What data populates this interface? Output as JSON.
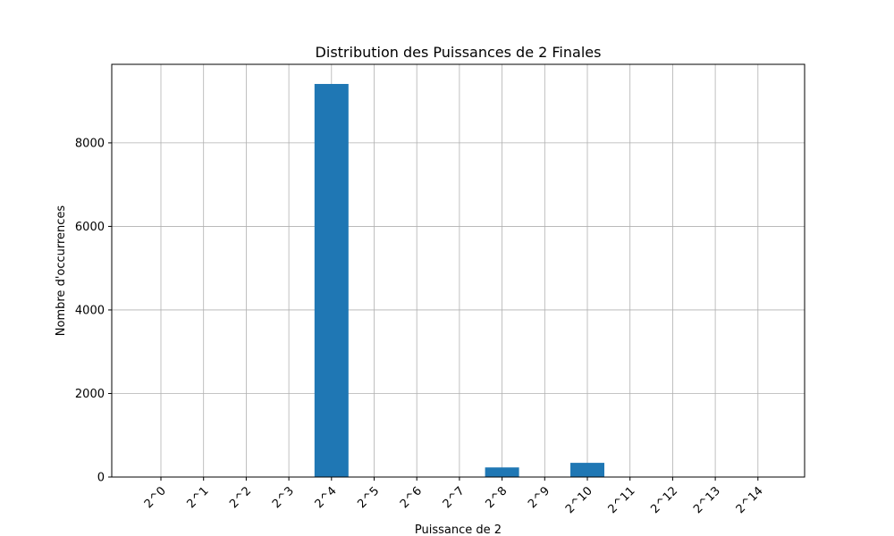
{
  "chart_data": {
    "type": "bar",
    "title": "Distribution des Puissances de 2 Finales",
    "xlabel": "Puissance de 2",
    "ylabel": "Nombre d'occurrences",
    "categories": [
      "2^0",
      "2^1",
      "2^2",
      "2^3",
      "2^4",
      "2^5",
      "2^6",
      "2^7",
      "2^8",
      "2^9",
      "2^10",
      "2^11",
      "2^12",
      "2^13",
      "2^14"
    ],
    "values": [
      0,
      0,
      0,
      0,
      9410,
      0,
      0,
      0,
      230,
      0,
      340,
      0,
      0,
      0,
      0
    ],
    "ylim": [
      0,
      9880
    ],
    "yticks": [
      0,
      2000,
      4000,
      6000,
      8000
    ],
    "ytick_labels": [
      "0",
      "2000",
      "4000",
      "6000",
      "8000"
    ],
    "grid": true,
    "bar_color": "#1f77b4",
    "grid_color": "#b0b0b0"
  }
}
